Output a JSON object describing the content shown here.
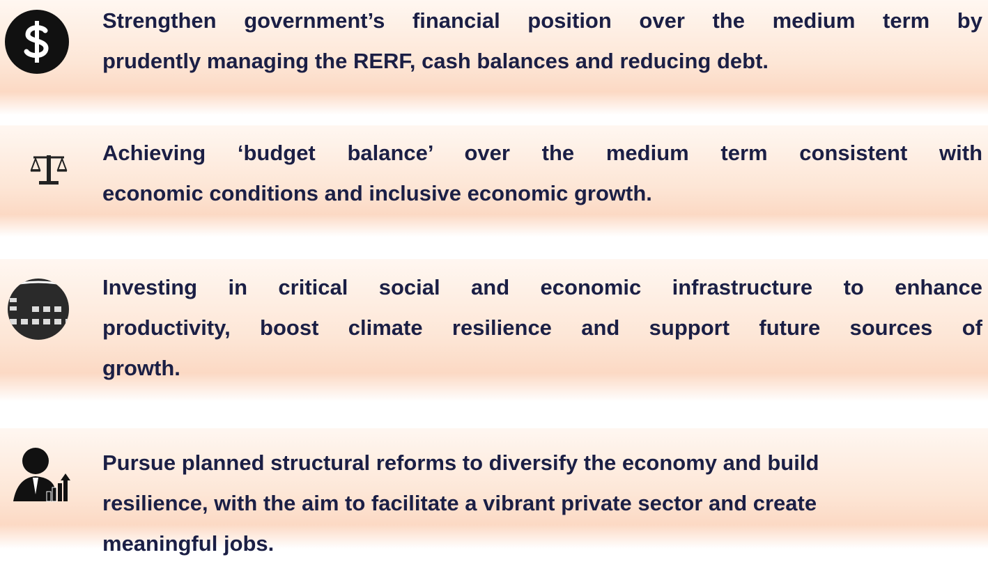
{
  "items": [
    {
      "lines": [
        "Strengthen government’s financial position over the medium term by",
        "prudently managing the RERF, cash balances and reducing debt."
      ]
    },
    {
      "lines": [
        "Achieving ‘budget balance’ over the medium term consistent with",
        "economic conditions and inclusive economic growth."
      ]
    },
    {
      "lines": [
        "Investing in critical social and economic infrastructure to enhance",
        "productivity, boost climate resilience and  support future sources of",
        "growth."
      ]
    },
    {
      "lines": [
        "Pursue planned structural reforms to diversify the economy and build",
        "resilience, with the aim to facilitate a vibrant private sector and create",
        "meaningful jobs."
      ]
    }
  ]
}
